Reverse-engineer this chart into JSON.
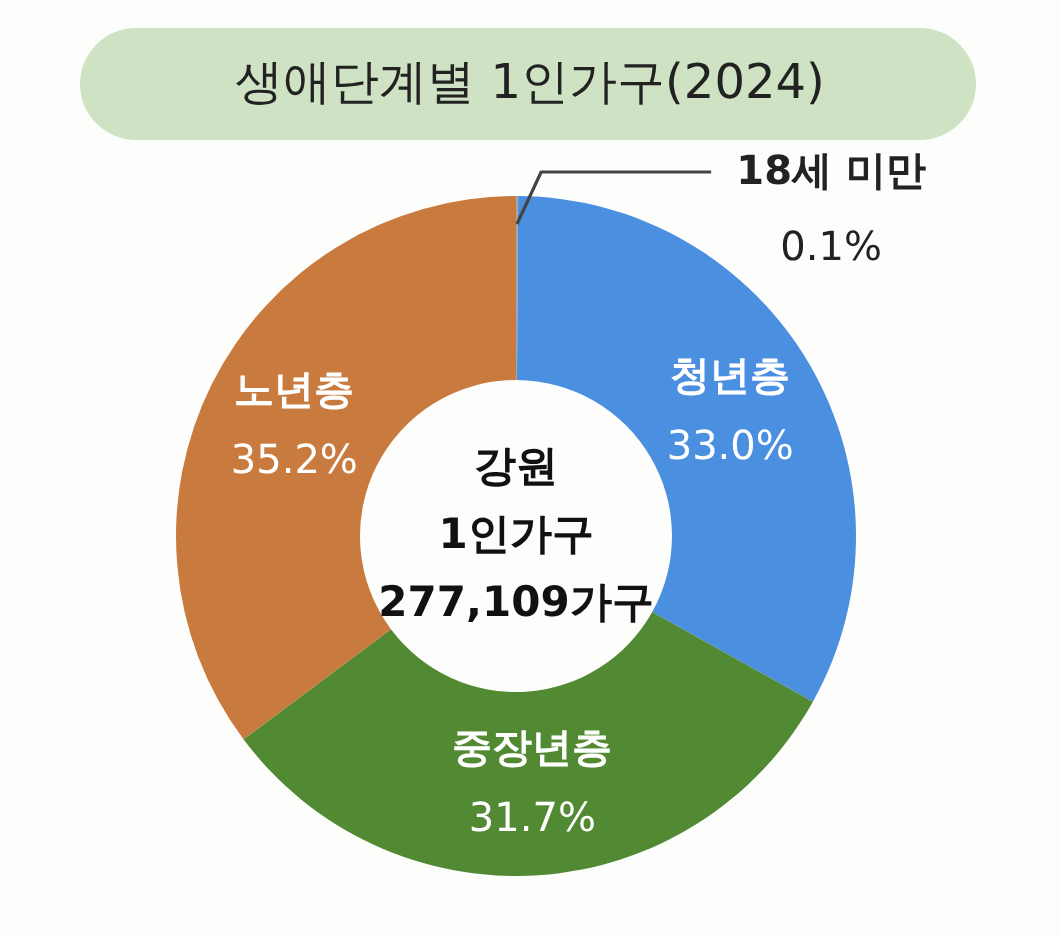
{
  "chart_data": {
    "type": "donut",
    "title": "생애단계별 1인가구(2024)",
    "categories": [
      "18세 미만",
      "청년층",
      "중장년층",
      "노년층"
    ],
    "values": [
      0.1,
      33.0,
      31.7,
      35.2
    ],
    "colors": [
      "#a6a6a6",
      "#4a8fe0",
      "#528a33",
      "#c97b3f"
    ],
    "value_labels": [
      "0.1%",
      "33.0%",
      "31.7%",
      "35.2%"
    ],
    "annotations": [
      "강원",
      "1인가구",
      "277,109가구"
    ]
  }
}
